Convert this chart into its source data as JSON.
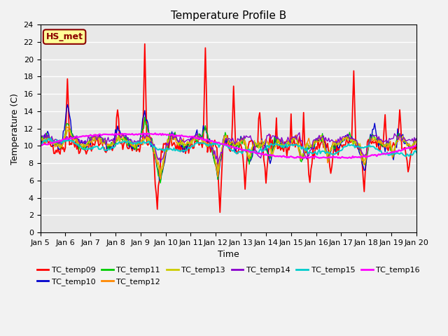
{
  "title": "Temperature Profile B",
  "xlabel": "Time",
  "ylabel": "Temperature (C)",
  "ylim": [
    0,
    24
  ],
  "xlim": [
    0,
    360
  ],
  "x_tick_labels": [
    "Jan 5",
    "Jan 6",
    "Jan 7",
    "Jan 8",
    "Jan 9",
    "Jan 10",
    "Jan 11",
    "Jan 12",
    "Jan 13",
    "Jan 14",
    "Jan 15",
    "Jan 16",
    "Jan 17",
    "Jan 18",
    "Jan 19",
    "Jan 20"
  ],
  "x_tick_positions": [
    0,
    24,
    48,
    72,
    96,
    120,
    144,
    168,
    192,
    216,
    240,
    264,
    288,
    312,
    336,
    360
  ],
  "y_ticks": [
    0,
    2,
    4,
    6,
    8,
    10,
    12,
    14,
    16,
    18,
    20,
    22,
    24
  ],
  "series_colors": {
    "TC_temp09": "#ff0000",
    "TC_temp10": "#0000cc",
    "TC_temp11": "#00cc00",
    "TC_temp12": "#ff8800",
    "TC_temp13": "#cccc00",
    "TC_temp14": "#8800cc",
    "TC_temp15": "#00cccc",
    "TC_temp16": "#ff00ff"
  },
  "annotation_text": "HS_met",
  "annotation_color": "#8b0000",
  "annotation_bg": "#ffff99",
  "background_color": "#e8e8e8",
  "grid_color": "#ffffff",
  "title_fontsize": 11,
  "label_fontsize": 9,
  "tick_fontsize": 8,
  "legend_fontsize": 8,
  "linewidth": 1.0
}
